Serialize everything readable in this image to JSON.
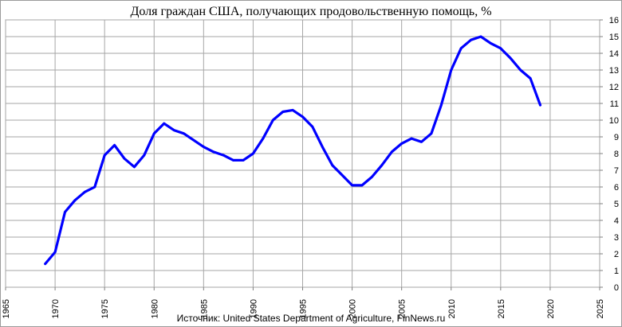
{
  "title": "Доля граждан США, получающих продовольственную помощь, %",
  "source": "Источник: United States Department of Agriculture,  FinNews.ru",
  "chart_data": {
    "type": "line",
    "title": "Доля граждан США, получающих продовольственную помощь, %",
    "xlabel": "",
    "ylabel": "",
    "xlim": [
      1965,
      2025
    ],
    "ylim": [
      0,
      16
    ],
    "x_ticks": [
      1965,
      1970,
      1975,
      1980,
      1985,
      1990,
      1995,
      2000,
      2005,
      2010,
      2015,
      2020,
      2025
    ],
    "y_ticks": [
      0,
      1,
      2,
      3,
      4,
      5,
      6,
      7,
      8,
      9,
      10,
      11,
      12,
      13,
      14,
      15,
      16
    ],
    "y_axis_side": "right",
    "grid": true,
    "series": [
      {
        "color": "#0000ff",
        "x": [
          1969,
          1970,
          1971,
          1972,
          1973,
          1974,
          1975,
          1976,
          1977,
          1978,
          1979,
          1980,
          1981,
          1982,
          1983,
          1984,
          1985,
          1986,
          1987,
          1988,
          1989,
          1990,
          1991,
          1992,
          1993,
          1994,
          1995,
          1996,
          1997,
          1998,
          1999,
          2000,
          2001,
          2002,
          2003,
          2004,
          2005,
          2006,
          2007,
          2008,
          2009,
          2010,
          2011,
          2012,
          2013,
          2014,
          2015,
          2016,
          2017,
          2018,
          2019
        ],
        "y": [
          1.4,
          2.1,
          4.5,
          5.2,
          5.7,
          6.0,
          7.9,
          8.5,
          7.7,
          7.2,
          7.9,
          9.2,
          9.8,
          9.4,
          9.2,
          8.8,
          8.4,
          8.1,
          7.9,
          7.6,
          7.6,
          8.0,
          8.9,
          10.0,
          10.5,
          10.6,
          10.2,
          9.6,
          8.4,
          7.3,
          6.7,
          6.1,
          6.1,
          6.6,
          7.3,
          8.1,
          8.6,
          8.9,
          8.7,
          9.2,
          10.9,
          13.0,
          14.3,
          14.8,
          15.0,
          14.6,
          14.3,
          13.7,
          13.0,
          12.5,
          10.9
        ]
      }
    ]
  }
}
